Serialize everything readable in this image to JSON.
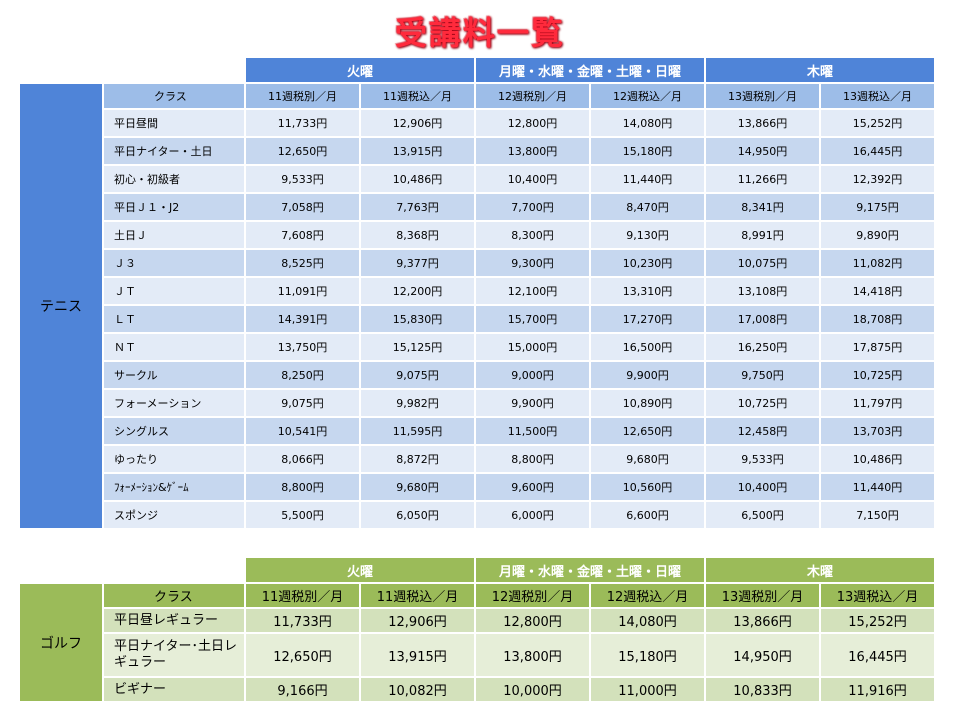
{
  "title": "受講料一覧",
  "groups": [
    "火曜",
    "月曜・水曜・金曜・土曜・日曜",
    "木曜"
  ],
  "column_headers": [
    "11週税別／月",
    "11週税込／月",
    "12週税別／月",
    "12週税込／月",
    "13週税別／月",
    "13週税込／月"
  ],
  "tennis": {
    "category": "テニス",
    "class_header": "クラス",
    "rows": [
      {
        "label": "平日昼間",
        "values": [
          "11,733円",
          "12,906円",
          "12,800円",
          "14,080円",
          "13,866円",
          "15,252円"
        ]
      },
      {
        "label": "平日ナイター・土日",
        "values": [
          "12,650円",
          "13,915円",
          "13,800円",
          "15,180円",
          "14,950円",
          "16,445円"
        ]
      },
      {
        "label": "初心・初級者",
        "values": [
          "9,533円",
          "10,486円",
          "10,400円",
          "11,440円",
          "11,266円",
          "12,392円"
        ]
      },
      {
        "label": "平日Ｊ１・J2",
        "values": [
          "7,058円",
          "7,763円",
          "7,700円",
          "8,470円",
          "8,341円",
          "9,175円"
        ]
      },
      {
        "label": "土日Ｊ",
        "values": [
          "7,608円",
          "8,368円",
          "8,300円",
          "9,130円",
          "8,991円",
          "9,890円"
        ]
      },
      {
        "label": "Ｊ３",
        "values": [
          "8,525円",
          "9,377円",
          "9,300円",
          "10,230円",
          "10,075円",
          "11,082円"
        ]
      },
      {
        "label": "ＪＴ",
        "values": [
          "11,091円",
          "12,200円",
          "12,100円",
          "13,310円",
          "13,108円",
          "14,418円"
        ]
      },
      {
        "label": "ＬＴ",
        "values": [
          "14,391円",
          "15,830円",
          "15,700円",
          "17,270円",
          "17,008円",
          "18,708円"
        ]
      },
      {
        "label": "ＮＴ",
        "values": [
          "13,750円",
          "15,125円",
          "15,000円",
          "16,500円",
          "16,250円",
          "17,875円"
        ]
      },
      {
        "label": "サークル",
        "values": [
          "8,250円",
          "9,075円",
          "9,000円",
          "9,900円",
          "9,750円",
          "10,725円"
        ]
      },
      {
        "label": "フォーメーション",
        "values": [
          "9,075円",
          "9,982円",
          "9,900円",
          "10,890円",
          "10,725円",
          "11,797円"
        ]
      },
      {
        "label": "シングルス",
        "values": [
          "10,541円",
          "11,595円",
          "11,500円",
          "12,650円",
          "12,458円",
          "13,703円"
        ]
      },
      {
        "label": "ゆったり",
        "values": [
          "8,066円",
          "8,872円",
          "8,800円",
          "9,680円",
          "9,533円",
          "10,486円"
        ]
      },
      {
        "label": "ﾌｫｰﾒｰｼｮﾝ&ｹﾞｰﾑ",
        "values": [
          "8,800円",
          "9,680円",
          "9,600円",
          "10,560円",
          "10,400円",
          "11,440円"
        ]
      },
      {
        "label": "スポンジ",
        "values": [
          "5,500円",
          "6,050円",
          "6,000円",
          "6,600円",
          "6,500円",
          "7,150円"
        ]
      }
    ]
  },
  "golf": {
    "category": "ゴルフ",
    "class_header": "クラス",
    "rows": [
      {
        "label": "平日昼レギュラー",
        "values": [
          "11,733円",
          "12,906円",
          "12,800円",
          "14,080円",
          "13,866円",
          "15,252円"
        ]
      },
      {
        "label": "平日ナイター･土日レギュラー",
        "values": [
          "12,650円",
          "13,915円",
          "13,800円",
          "15,180円",
          "14,950円",
          "16,445円"
        ]
      },
      {
        "label": "ビギナー",
        "values": [
          "9,166円",
          "10,082円",
          "10,000円",
          "11,000円",
          "10,833円",
          "11,916円"
        ]
      }
    ]
  },
  "colors": {
    "title": "#ff2a3c",
    "tennis_accent": "#4f84d8",
    "golf_accent": "#9bbb59"
  }
}
